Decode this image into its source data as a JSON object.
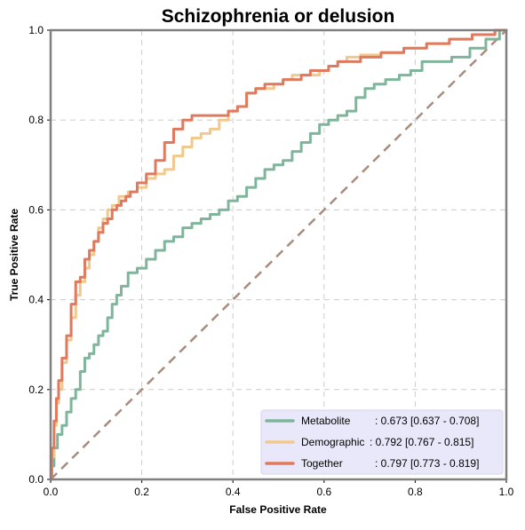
{
  "chart_data": {
    "type": "line",
    "title": "Schizophrenia or delusion",
    "xlabel": "False Positive Rate",
    "ylabel": "True Positive Rate",
    "xlim": [
      0,
      1
    ],
    "ylim": [
      0,
      1
    ],
    "xticks": [
      "0.0",
      "0.2",
      "0.4",
      "0.6",
      "0.8",
      "1.0"
    ],
    "yticks": [
      "0.0",
      "0.2",
      "0.4",
      "0.6",
      "0.8",
      "1.0"
    ],
    "grid": true,
    "legend_position": "lower-right",
    "diagonal_color": "#a88c7d",
    "series": [
      {
        "name": "Metabolite",
        "label_value": ": 0.673 [0.637 - 0.708]",
        "color": "#7fb69b",
        "x": [
          0,
          0.005,
          0.01,
          0.02,
          0.03,
          0.04,
          0.05,
          0.06,
          0.07,
          0.08,
          0.09,
          0.1,
          0.11,
          0.12,
          0.13,
          0.14,
          0.15,
          0.16,
          0.18,
          0.2,
          0.22,
          0.24,
          0.26,
          0.28,
          0.3,
          0.32,
          0.34,
          0.36,
          0.38,
          0.4,
          0.42,
          0.44,
          0.46,
          0.48,
          0.5,
          0.52,
          0.54,
          0.56,
          0.58,
          0.6,
          0.62,
          0.64,
          0.66,
          0.68,
          0.7,
          0.72,
          0.75,
          0.78,
          0.8,
          0.83,
          0.86,
          0.9,
          0.94,
          0.97,
          1.0
        ],
        "y": [
          0,
          0.03,
          0.07,
          0.1,
          0.12,
          0.15,
          0.18,
          0.2,
          0.24,
          0.27,
          0.28,
          0.3,
          0.32,
          0.33,
          0.36,
          0.39,
          0.41,
          0.43,
          0.46,
          0.47,
          0.49,
          0.51,
          0.53,
          0.54,
          0.56,
          0.57,
          0.58,
          0.59,
          0.6,
          0.62,
          0.63,
          0.65,
          0.67,
          0.69,
          0.7,
          0.71,
          0.73,
          0.75,
          0.77,
          0.79,
          0.8,
          0.81,
          0.82,
          0.85,
          0.87,
          0.88,
          0.89,
          0.9,
          0.91,
          0.93,
          0.93,
          0.94,
          0.96,
          0.98,
          1.0
        ]
      },
      {
        "name": "Demographic",
        "label_value": ": 0.792 [0.767 - 0.815]",
        "color": "#f2c98c",
        "x": [
          0,
          0.005,
          0.01,
          0.015,
          0.02,
          0.03,
          0.04,
          0.05,
          0.06,
          0.07,
          0.08,
          0.09,
          0.1,
          0.11,
          0.12,
          0.13,
          0.14,
          0.16,
          0.18,
          0.2,
          0.22,
          0.24,
          0.26,
          0.28,
          0.3,
          0.32,
          0.34,
          0.36,
          0.38,
          0.4,
          0.42,
          0.44,
          0.46,
          0.48,
          0.5,
          0.52,
          0.54,
          0.56,
          0.58,
          0.6,
          0.62,
          0.64,
          0.66,
          0.7,
          0.75,
          0.8,
          0.85,
          0.9,
          0.95,
          1.0
        ],
        "y": [
          0,
          0.05,
          0.12,
          0.17,
          0.2,
          0.26,
          0.31,
          0.36,
          0.41,
          0.44,
          0.47,
          0.5,
          0.53,
          0.56,
          0.58,
          0.6,
          0.61,
          0.63,
          0.64,
          0.65,
          0.67,
          0.68,
          0.69,
          0.72,
          0.74,
          0.76,
          0.77,
          0.78,
          0.8,
          0.82,
          0.83,
          0.86,
          0.87,
          0.87,
          0.88,
          0.89,
          0.9,
          0.9,
          0.9,
          0.91,
          0.92,
          0.93,
          0.94,
          0.945,
          0.95,
          0.96,
          0.97,
          0.98,
          0.99,
          1.0
        ]
      },
      {
        "name": "Together",
        "label_value": ": 0.797 [0.773 - 0.819]",
        "color": "#e07a5f",
        "x": [
          0,
          0.005,
          0.01,
          0.015,
          0.02,
          0.03,
          0.04,
          0.05,
          0.06,
          0.07,
          0.08,
          0.09,
          0.1,
          0.11,
          0.12,
          0.13,
          0.14,
          0.15,
          0.16,
          0.17,
          0.18,
          0.2,
          0.22,
          0.24,
          0.26,
          0.28,
          0.3,
          0.32,
          0.34,
          0.35,
          0.38,
          0.4,
          0.42,
          0.44,
          0.46,
          0.48,
          0.5,
          0.52,
          0.54,
          0.56,
          0.58,
          0.6,
          0.62,
          0.64,
          0.66,
          0.7,
          0.75,
          0.8,
          0.85,
          0.9,
          0.95,
          1.0
        ],
        "y": [
          0,
          0.07,
          0.13,
          0.18,
          0.22,
          0.27,
          0.32,
          0.39,
          0.44,
          0.45,
          0.49,
          0.51,
          0.53,
          0.55,
          0.57,
          0.58,
          0.6,
          0.61,
          0.62,
          0.63,
          0.64,
          0.66,
          0.68,
          0.71,
          0.75,
          0.78,
          0.8,
          0.81,
          0.81,
          0.81,
          0.81,
          0.82,
          0.83,
          0.86,
          0.87,
          0.88,
          0.88,
          0.89,
          0.89,
          0.9,
          0.91,
          0.91,
          0.92,
          0.93,
          0.93,
          0.94,
          0.95,
          0.96,
          0.97,
          0.98,
          0.99,
          1.0
        ]
      }
    ]
  }
}
